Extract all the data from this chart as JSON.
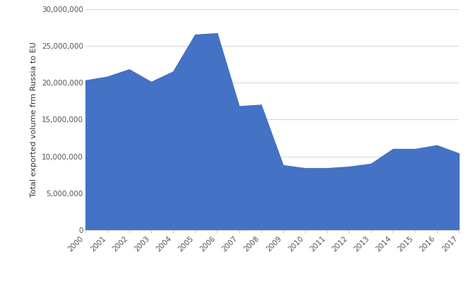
{
  "years": [
    2000,
    2001,
    2002,
    2003,
    2004,
    2005,
    2006,
    2007,
    2008,
    2009,
    2010,
    2011,
    2012,
    2013,
    2014,
    2015,
    2016,
    2017
  ],
  "values": [
    20300000,
    20800000,
    21800000,
    20100000,
    21500000,
    26500000,
    26700000,
    16800000,
    17000000,
    8800000,
    8400000,
    8400000,
    8600000,
    9000000,
    11000000,
    11000000,
    11500000,
    10400000
  ],
  "fill_color": "#4472C4",
  "ylabel": "Total exported volume frm Russia to EU",
  "ylim": [
    0,
    30000000
  ],
  "yticks": [
    0,
    5000000,
    10000000,
    15000000,
    20000000,
    25000000,
    30000000
  ],
  "background_color": "#ffffff",
  "grid_color": "#d3d3d3",
  "ylabel_fontsize": 8,
  "tick_fontsize": 7.5,
  "figsize": [
    6.7,
    4.18
  ],
  "dpi": 100
}
